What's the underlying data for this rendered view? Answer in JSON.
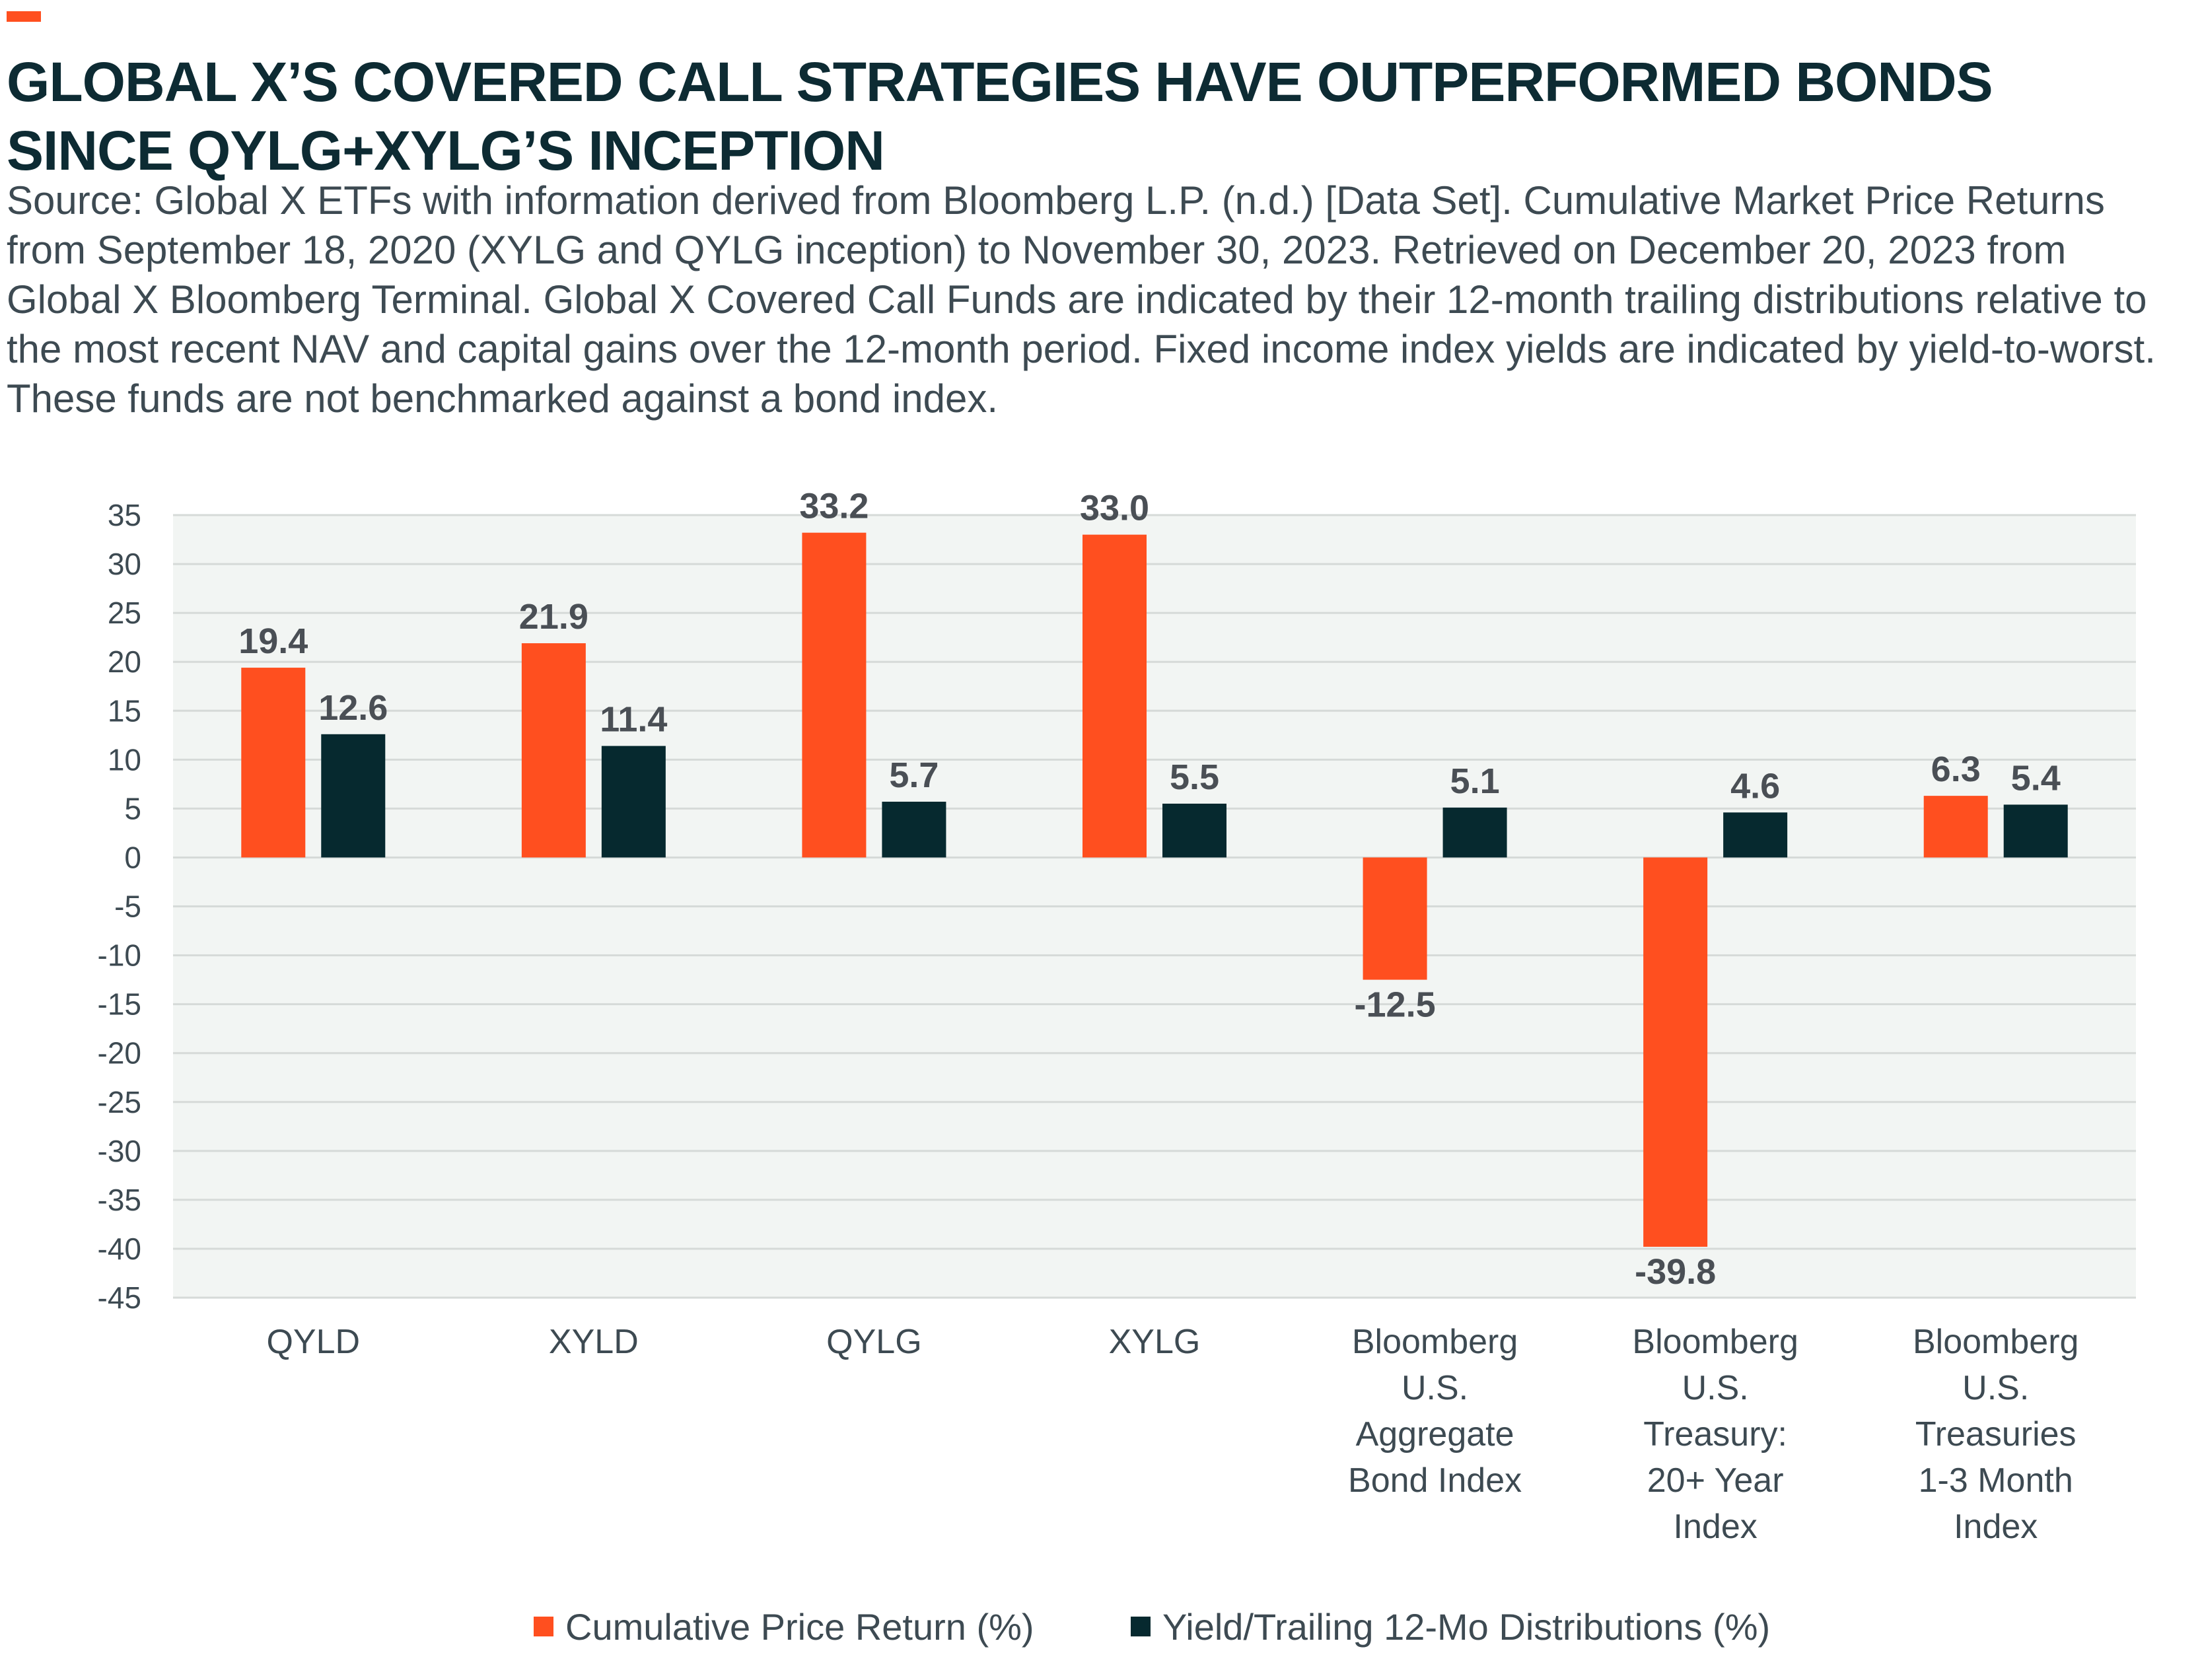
{
  "header": {
    "title": "GLOBAL X’S COVERED CALL STRATEGIES HAVE OUTPERFORMED BONDS SINCE QYLG+XYLG’S INCEPTION",
    "source": "Source: Global X ETFs with information derived from Bloomberg L.P. (n.d.) [Data Set]. Cumulative Market Price Returns from September 18, 2020 (XYLG and QYLG inception) to November 30, 2023. Retrieved on December 20, 2023 from Global X Bloomberg Terminal. Global X Covered Call Funds are indicated by their 12-month trailing distributions relative to the most recent NAV and capital gains over the 12-month period. Fixed income index yields are indicated by yield-to-worst. These funds are not benchmarked against a bond index."
  },
  "colors": {
    "accent": "#ff4f1f",
    "series_return": "#ff4f1f",
    "series_yield": "#06292f",
    "plot_background": "#f2f5f3",
    "gridline": "#d6dad8"
  },
  "chart_data": {
    "type": "bar",
    "title": "",
    "xlabel": "",
    "ylabel": "",
    "ylim": [
      -45,
      35
    ],
    "yticks": [
      35,
      30,
      25,
      20,
      15,
      10,
      5,
      0,
      -5,
      -10,
      -15,
      -20,
      -25,
      -30,
      -35,
      -40,
      -45
    ],
    "grid": true,
    "legend_position": "bottom",
    "categories": [
      [
        "QYLD"
      ],
      [
        "XYLD"
      ],
      [
        "QYLG"
      ],
      [
        "XYLG"
      ],
      [
        "Bloomberg",
        "U.S.",
        "Aggregate",
        "Bond Index"
      ],
      [
        "Bloomberg",
        "U.S.",
        "Treasury:",
        "20+ Year",
        "Index"
      ],
      [
        "Bloomberg",
        "U.S.",
        "Treasuries",
        "1-3 Month",
        "Index"
      ]
    ],
    "series": [
      {
        "name": "Cumulative Price Return (%)",
        "color": "#ff4f1f",
        "values": [
          19.4,
          21.9,
          33.2,
          33.0,
          -12.5,
          -39.8,
          6.3
        ],
        "labels": [
          "19.4",
          "21.9",
          "33.2",
          "33.0",
          "-12.5",
          "-39.8",
          "6.3"
        ]
      },
      {
        "name": "Yield/Trailing 12-Mo Distributions (%)",
        "color": "#06292f",
        "values": [
          12.6,
          11.4,
          5.7,
          5.5,
          5.1,
          4.6,
          5.4
        ],
        "labels": [
          "12.6",
          "11.4",
          "5.7",
          "5.5",
          "5.1",
          "4.6",
          "5.4"
        ]
      }
    ]
  }
}
